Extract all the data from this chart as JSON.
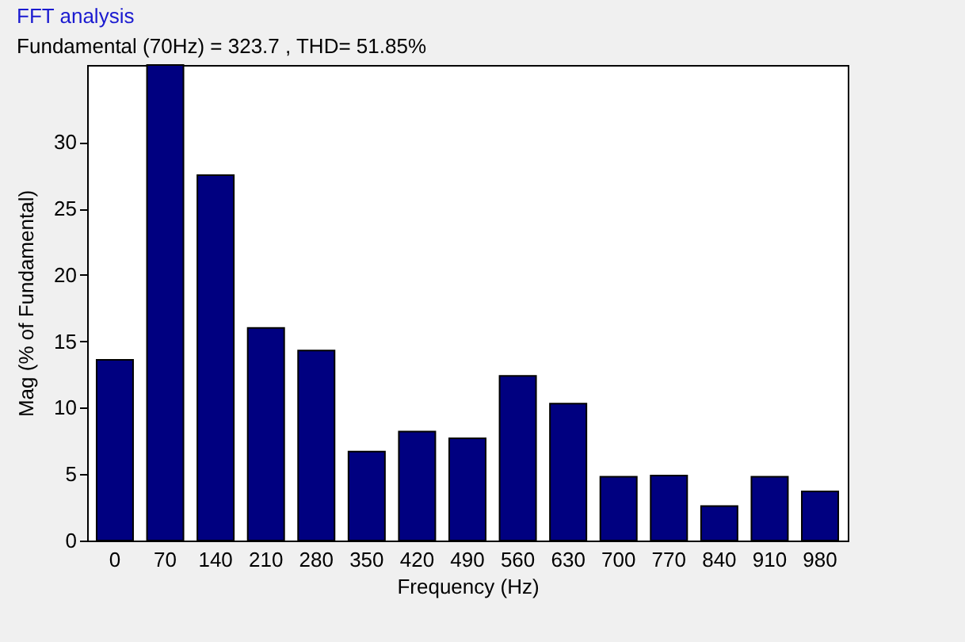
{
  "chart_data": {
    "type": "bar",
    "title": "FFT analysis",
    "subtitle": "Fundamental (70Hz) = 323.7 , THD= 51.85%",
    "xlabel": "Frequency (Hz)",
    "ylabel": "Mag (% of Fundamental)",
    "categories": [
      "0",
      "70",
      "140",
      "210",
      "280",
      "350",
      "420",
      "490",
      "560",
      "630",
      "700",
      "770",
      "840",
      "910",
      "980"
    ],
    "values": [
      13.6,
      35.8,
      27.5,
      16.0,
      14.3,
      6.7,
      8.2,
      7.7,
      12.4,
      10.3,
      4.8,
      4.9,
      2.6,
      4.8,
      3.7
    ],
    "color": "#000080",
    "ylim": [
      0,
      35.8
    ],
    "yticks": [
      0,
      5,
      10,
      15,
      20,
      25,
      30
    ],
    "grid": false
  }
}
